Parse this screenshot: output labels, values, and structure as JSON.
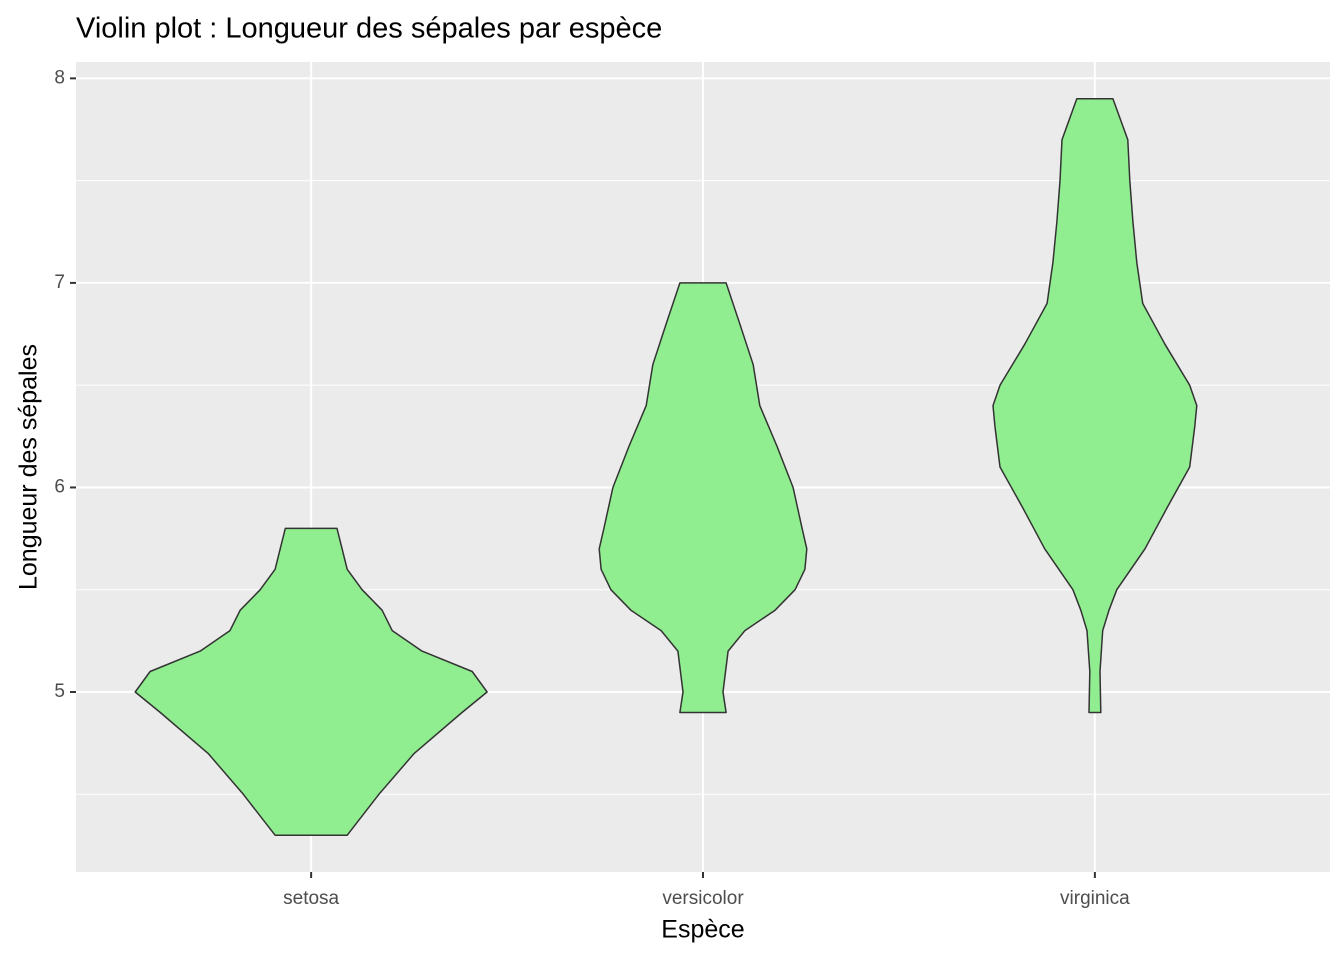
{
  "chart_data": {
    "type": "violin",
    "title": "Violin plot : Longueur des sépales par espèce",
    "x_label": "Espèce",
    "y_label": "Longueur des sépales",
    "categories": [
      "setosa",
      "versicolor",
      "virginica"
    ],
    "fill": "#90ee90",
    "outline": "#333333",
    "ylim": [
      4.12,
      8.08
    ],
    "yticks": [
      5,
      6,
      7,
      8
    ],
    "minor_yticks": [
      4.5,
      5.5,
      6.5,
      7.5
    ],
    "grid": true,
    "violins": [
      {
        "y": [
          4.3,
          4.5,
          4.7,
          4.9,
          5.0,
          5.1,
          5.2,
          5.3,
          5.4,
          5.5,
          5.6,
          5.7,
          5.8
        ],
        "half_width": [
          0.092,
          0.173,
          0.263,
          0.385,
          0.449,
          0.411,
          0.283,
          0.207,
          0.181,
          0.13,
          0.092,
          0.079,
          0.066
        ]
      },
      {
        "y": [
          4.9,
          5.0,
          5.2,
          5.3,
          5.4,
          5.5,
          5.6,
          5.7,
          5.8,
          6.0,
          6.2,
          6.4,
          6.6,
          6.8,
          7.0
        ],
        "half_width": [
          0.059,
          0.051,
          0.064,
          0.107,
          0.184,
          0.235,
          0.26,
          0.265,
          0.253,
          0.23,
          0.189,
          0.145,
          0.128,
          0.094,
          0.059
        ]
      },
      {
        "y": [
          4.9,
          5.1,
          5.3,
          5.4,
          5.5,
          5.7,
          5.9,
          6.1,
          6.3,
          6.4,
          6.5,
          6.7,
          6.9,
          7.1,
          7.3,
          7.5,
          7.7,
          7.9
        ],
        "half_width": [
          0.015,
          0.013,
          0.02,
          0.036,
          0.056,
          0.128,
          0.184,
          0.242,
          0.255,
          0.26,
          0.242,
          0.179,
          0.122,
          0.107,
          0.097,
          0.089,
          0.084,
          0.046
        ]
      }
    ]
  }
}
